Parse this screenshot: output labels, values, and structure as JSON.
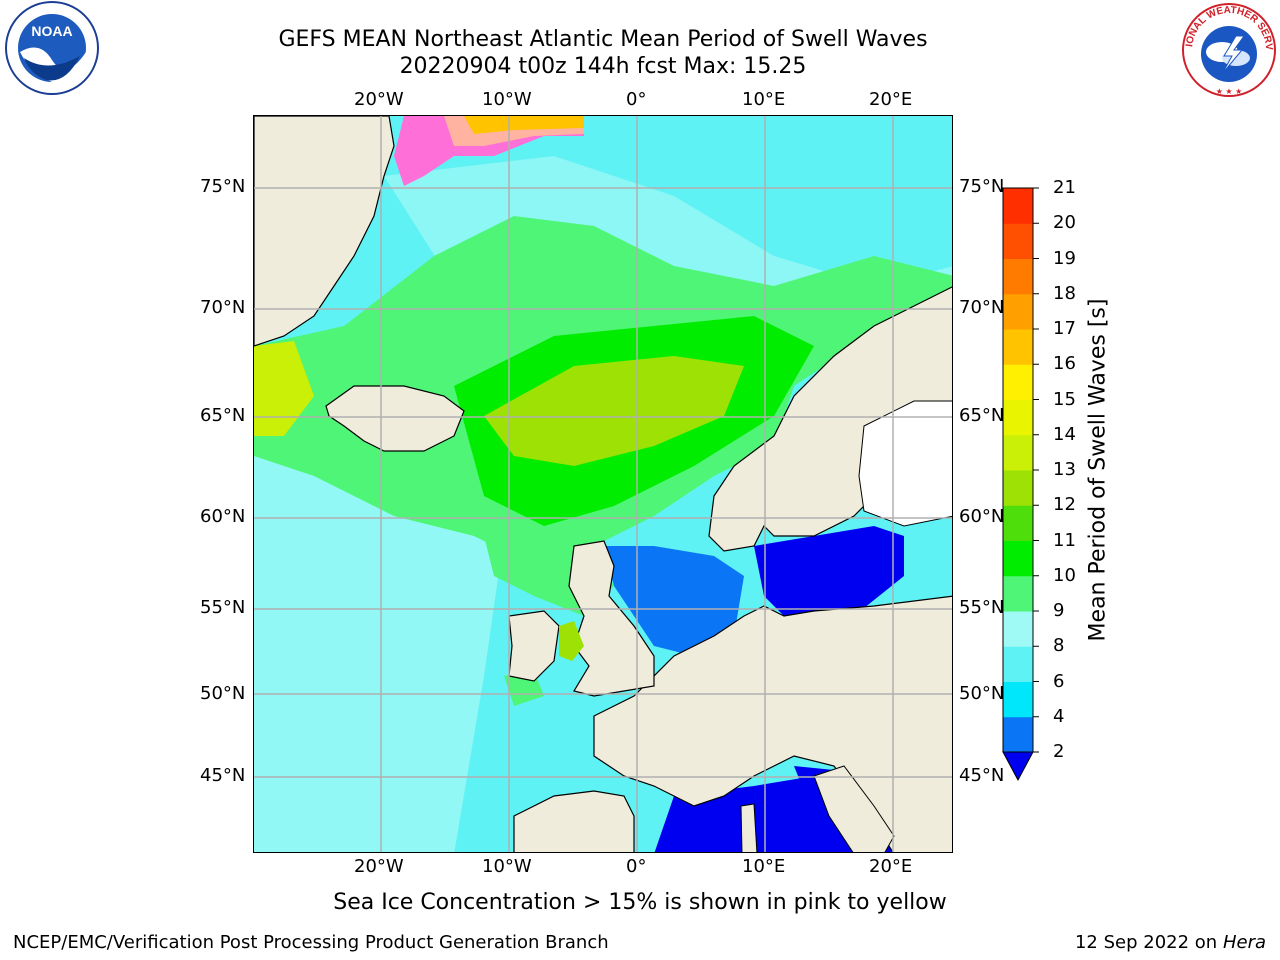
{
  "title": {
    "line1": "GEFS MEAN Northeast Atlantic Mean Period of Swell Waves",
    "line2": "20220904 t00z 144h fcst   Max: 15.25"
  },
  "caption": "Sea Ice Concentration > 15% is shown in pink to yellow",
  "footer": {
    "left": "NCEP/EMC/Verification Post Processing Product Generation Branch",
    "right_date": "12 Sep 2022 on",
    "right_host": "Hera"
  },
  "logos": {
    "left": {
      "icon": "noaa-logo-icon",
      "text": "NOAA"
    },
    "right": {
      "icon": "nws-logo-icon",
      "text": "NATIONAL WEATHER SERVICE"
    }
  },
  "map": {
    "lon_ticks_top": [
      "20°W",
      "10°W",
      "0°",
      "10°E",
      "20°E"
    ],
    "lon_ticks_bottom": [
      "20°W",
      "10°W",
      "0°",
      "10°E",
      "20°E"
    ],
    "lat_ticks_left": [
      "75°N",
      "70°N",
      "65°N",
      "60°N",
      "55°N",
      "50°N",
      "45°N"
    ],
    "lat_ticks_right": [
      "75°N",
      "70°N",
      "65°N",
      "60°N",
      "55°N",
      "50°N",
      "45°N"
    ],
    "land_color": "#efecdc",
    "grid_color": "#b0b0b0"
  },
  "colorbar": {
    "label": "Mean Period of Swell Waves [s]",
    "ticks": [
      "2",
      "4",
      "6",
      "8",
      "9",
      "10",
      "11",
      "12",
      "13",
      "14",
      "15",
      "16",
      "17",
      "18",
      "19",
      "20",
      "21"
    ],
    "colors": [
      "#0a75f5",
      "#00e6fa",
      "#5ff2f5",
      "#9ff9f5",
      "#4ff576",
      "#00ed00",
      "#4dde0b",
      "#9ee205",
      "#c9f006",
      "#e9f500",
      "#ffef00",
      "#ffc300",
      "#ff9f00",
      "#ff7b00",
      "#ff4f00",
      "#ff2f00",
      "#ff0000"
    ],
    "under_color": "#0000f0"
  }
}
